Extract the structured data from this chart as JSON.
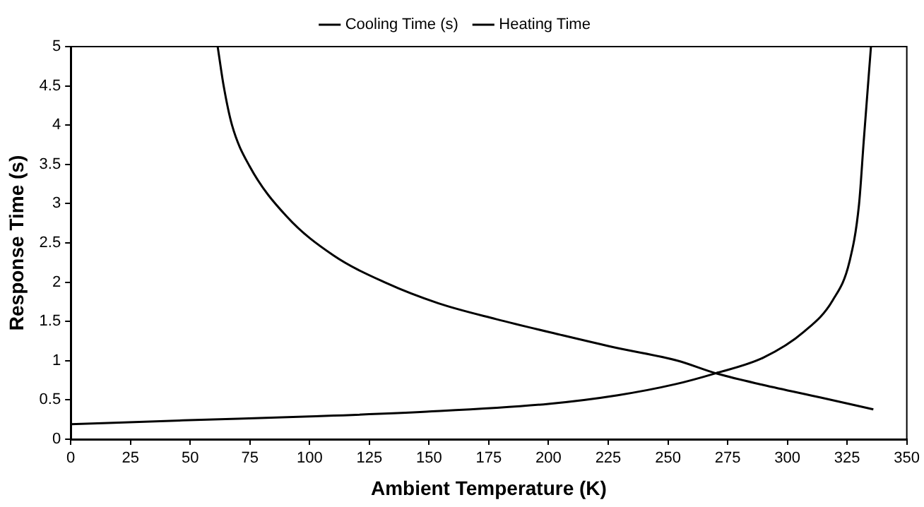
{
  "chart_data": {
    "type": "line",
    "xlabel": "Ambient Temperature (K)",
    "ylabel": "Response Time (s)",
    "xlim": [
      0,
      350
    ],
    "xticks": [
      0,
      25,
      50,
      75,
      100,
      125,
      150,
      175,
      200,
      225,
      250,
      275,
      300,
      325,
      350
    ],
    "ylim": [
      0,
      5
    ],
    "yticks": [
      0,
      0.5,
      1,
      1.5,
      2,
      2.5,
      3,
      3.5,
      4,
      4.5,
      5
    ],
    "grid": false,
    "legend": "top",
    "marker": "none",
    "line_style": "solid",
    "series": [
      {
        "name": "Cooling Time (s)",
        "color": "#000000",
        "x": [
          0,
          47,
          100,
          149,
          200,
          229,
          253,
          270,
          290,
          307,
          319,
          326,
          330,
          332,
          335
        ],
        "values": [
          0.19,
          0.24,
          0.29,
          0.35,
          0.45,
          0.56,
          0.7,
          0.84,
          1.04,
          1.37,
          1.77,
          2.26,
          2.99,
          3.81,
          5
        ]
      },
      {
        "name": "Heating Time",
        "color": "#000000",
        "x": [
          61.5,
          64,
          67.5,
          74.8,
          90.6,
          110,
          132,
          154,
          178,
          205,
          229,
          254,
          270,
          290,
          314,
          336
        ],
        "values": [
          5,
          4.5,
          4,
          3.48,
          2.83,
          2.34,
          1.99,
          1.73,
          1.53,
          1.33,
          1.16,
          1,
          0.84,
          0.69,
          0.53,
          0.38
        ]
      }
    ]
  }
}
